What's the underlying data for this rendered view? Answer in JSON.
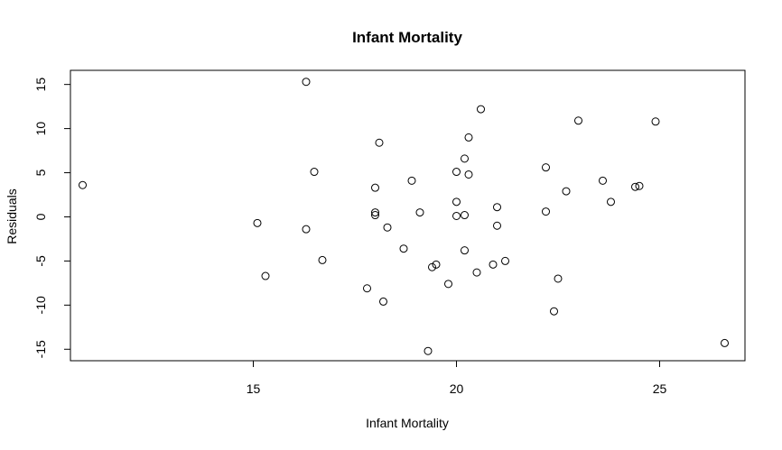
{
  "chart_data": {
    "type": "scatter",
    "title": "Infant Mortality",
    "xlabel": "Infant Mortality",
    "ylabel": "Residuals",
    "xlim": [
      10.5,
      27.1
    ],
    "ylim": [
      -16.3,
      16.6
    ],
    "x_ticks": [
      15,
      20,
      25
    ],
    "y_ticks": [
      -15,
      -10,
      -5,
      0,
      5,
      10,
      15
    ],
    "grid": false,
    "points": [
      {
        "x": 10.8,
        "y": 3.6
      },
      {
        "x": 15.1,
        "y": -0.7
      },
      {
        "x": 15.3,
        "y": -6.7
      },
      {
        "x": 16.3,
        "y": 15.3
      },
      {
        "x": 16.3,
        "y": -1.4
      },
      {
        "x": 16.5,
        "y": 5.1
      },
      {
        "x": 16.7,
        "y": -4.9
      },
      {
        "x": 17.8,
        "y": -8.1
      },
      {
        "x": 18.0,
        "y": 3.3
      },
      {
        "x": 18.0,
        "y": 0.5
      },
      {
        "x": 18.0,
        "y": 0.2
      },
      {
        "x": 18.1,
        "y": 8.4
      },
      {
        "x": 18.2,
        "y": -9.6
      },
      {
        "x": 18.3,
        "y": -1.2
      },
      {
        "x": 18.7,
        "y": -3.6
      },
      {
        "x": 18.9,
        "y": 4.1
      },
      {
        "x": 19.1,
        "y": 0.5
      },
      {
        "x": 19.3,
        "y": -15.2
      },
      {
        "x": 19.4,
        "y": -5.7
      },
      {
        "x": 19.5,
        "y": -5.4
      },
      {
        "x": 19.8,
        "y": -7.6
      },
      {
        "x": 20.0,
        "y": 5.1
      },
      {
        "x": 20.0,
        "y": 1.7
      },
      {
        "x": 20.0,
        "y": 0.1
      },
      {
        "x": 20.2,
        "y": 6.6
      },
      {
        "x": 20.2,
        "y": 0.2
      },
      {
        "x": 20.2,
        "y": -3.8
      },
      {
        "x": 20.3,
        "y": 9.0
      },
      {
        "x": 20.3,
        "y": 4.8
      },
      {
        "x": 20.5,
        "y": -6.3
      },
      {
        "x": 20.6,
        "y": 12.2
      },
      {
        "x": 20.9,
        "y": -5.4
      },
      {
        "x": 21.0,
        "y": 1.1
      },
      {
        "x": 21.0,
        "y": -1.0
      },
      {
        "x": 21.2,
        "y": -5.0
      },
      {
        "x": 22.2,
        "y": 5.6
      },
      {
        "x": 22.2,
        "y": 0.6
      },
      {
        "x": 22.4,
        "y": -10.7
      },
      {
        "x": 22.5,
        "y": -7.0
      },
      {
        "x": 22.7,
        "y": 2.9
      },
      {
        "x": 23.0,
        "y": 10.9
      },
      {
        "x": 23.6,
        "y": 4.1
      },
      {
        "x": 23.8,
        "y": 1.7
      },
      {
        "x": 24.4,
        "y": 3.4
      },
      {
        "x": 24.5,
        "y": 3.5
      },
      {
        "x": 24.9,
        "y": 10.8
      },
      {
        "x": 26.6,
        "y": -14.3
      }
    ]
  }
}
